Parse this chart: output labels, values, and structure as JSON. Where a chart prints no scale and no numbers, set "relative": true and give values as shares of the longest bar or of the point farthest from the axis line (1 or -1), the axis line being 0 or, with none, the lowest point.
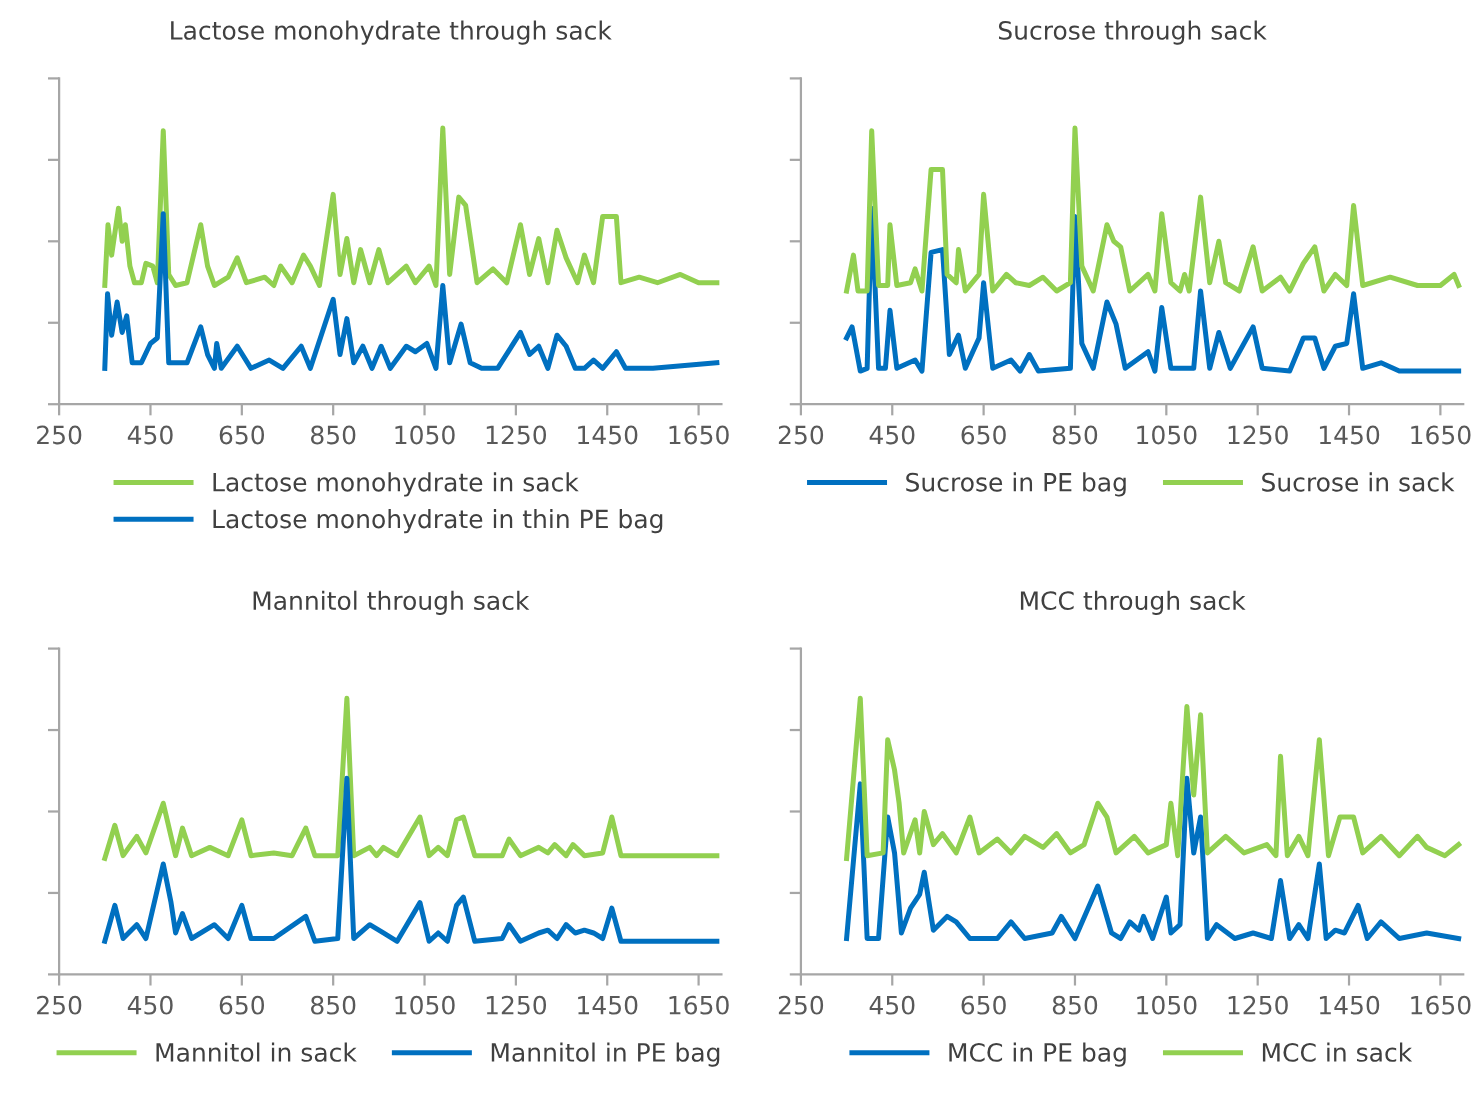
{
  "chart_data": [
    {
      "type": "line",
      "title": "Lactose monohydrate through sack",
      "relative": true,
      "xlim": [
        250,
        1700
      ],
      "xticks": [
        250,
        450,
        650,
        850,
        1050,
        1250,
        1450,
        1650
      ],
      "grid": false,
      "legend": "bottom",
      "marker": "none",
      "line_style": "solid",
      "tick_labels": "x",
      "series": [
        {
          "name": "Lactose monohydrate in sack",
          "color": "#92d050",
          "x": [
            350,
            357,
            365,
            380,
            388,
            395,
            405,
            415,
            430,
            440,
            455,
            465,
            478,
            490,
            505,
            530,
            560,
            575,
            590,
            620,
            640,
            660,
            700,
            720,
            735,
            760,
            785,
            800,
            820,
            850,
            865,
            880,
            895,
            910,
            930,
            950,
            970,
            1010,
            1030,
            1060,
            1075,
            1090,
            1105,
            1125,
            1140,
            1165,
            1200,
            1230,
            1260,
            1280,
            1300,
            1320,
            1340,
            1360,
            1385,
            1400,
            1420,
            1440,
            1470,
            1480,
            1520,
            1560,
            1610,
            1650,
            1690
          ],
          "values": [
            0.43,
            0.65,
            0.54,
            0.71,
            0.59,
            0.65,
            0.5,
            0.44,
            0.44,
            0.51,
            0.5,
            0.44,
            0.99,
            0.47,
            0.43,
            0.44,
            0.65,
            0.5,
            0.43,
            0.46,
            0.53,
            0.44,
            0.46,
            0.43,
            0.5,
            0.44,
            0.54,
            0.5,
            0.43,
            0.76,
            0.47,
            0.6,
            0.44,
            0.56,
            0.44,
            0.56,
            0.44,
            0.5,
            0.44,
            0.5,
            0.43,
            1,
            0.47,
            0.75,
            0.72,
            0.44,
            0.49,
            0.44,
            0.65,
            0.47,
            0.6,
            0.44,
            0.63,
            0.53,
            0.44,
            0.54,
            0.44,
            0.68,
            0.68,
            0.44,
            0.46,
            0.44,
            0.47,
            0.44,
            0.44
          ]
        },
        {
          "name": "Lactose monohydrate in thin PE bag",
          "color": "#0070c0",
          "x": [
            350,
            356,
            365,
            377,
            388,
            398,
            410,
            430,
            450,
            465,
            478,
            490,
            530,
            560,
            575,
            590,
            595,
            605,
            640,
            670,
            710,
            740,
            780,
            800,
            850,
            865,
            880,
            895,
            915,
            935,
            955,
            975,
            1010,
            1030,
            1055,
            1075,
            1090,
            1105,
            1130,
            1150,
            1175,
            1210,
            1260,
            1280,
            1300,
            1320,
            1340,
            1360,
            1380,
            1400,
            1420,
            1440,
            1470,
            1490,
            1550,
            1690
          ],
          "values": [
            0.13,
            0.4,
            0.25,
            0.37,
            0.26,
            0.32,
            0.15,
            0.15,
            0.22,
            0.24,
            0.69,
            0.15,
            0.15,
            0.28,
            0.18,
            0.13,
            0.22,
            0.13,
            0.21,
            0.13,
            0.16,
            0.13,
            0.21,
            0.13,
            0.38,
            0.18,
            0.31,
            0.15,
            0.21,
            0.13,
            0.21,
            0.13,
            0.21,
            0.19,
            0.22,
            0.13,
            0.43,
            0.15,
            0.29,
            0.15,
            0.13,
            0.13,
            0.26,
            0.18,
            0.21,
            0.13,
            0.25,
            0.21,
            0.13,
            0.13,
            0.16,
            0.13,
            0.19,
            0.13,
            0.13,
            0.15
          ]
        }
      ]
    },
    {
      "type": "line",
      "title": "Sucrose through sack",
      "relative": true,
      "xlim": [
        250,
        1700
      ],
      "xticks": [
        250,
        450,
        650,
        850,
        1050,
        1250,
        1450,
        1650
      ],
      "grid": false,
      "legend": "bottom",
      "marker": "none",
      "line_style": "solid",
      "tick_labels": "x",
      "series": [
        {
          "name": "Sucrose in PE bag",
          "color": "#0070c0",
          "x": [
            350,
            362,
            380,
            395,
            405,
            420,
            435,
            445,
            460,
            500,
            515,
            535,
            560,
            575,
            595,
            610,
            640,
            650,
            670,
            710,
            730,
            750,
            770,
            840,
            850,
            865,
            890,
            920,
            940,
            960,
            1010,
            1025,
            1040,
            1060,
            1110,
            1125,
            1145,
            1165,
            1190,
            1240,
            1260,
            1320,
            1350,
            1375,
            1395,
            1420,
            1445,
            1460,
            1480,
            1520,
            1560,
            1690
          ],
          "values": [
            0.24,
            0.28,
            0.12,
            0.13,
            0.71,
            0.13,
            0.13,
            0.34,
            0.13,
            0.16,
            0.12,
            0.55,
            0.56,
            0.18,
            0.25,
            0.13,
            0.24,
            0.44,
            0.13,
            0.16,
            0.12,
            0.18,
            0.12,
            0.13,
            0.68,
            0.22,
            0.13,
            0.37,
            0.29,
            0.13,
            0.19,
            0.12,
            0.35,
            0.13,
            0.13,
            0.41,
            0.13,
            0.26,
            0.13,
            0.28,
            0.13,
            0.12,
            0.24,
            0.24,
            0.13,
            0.21,
            0.22,
            0.4,
            0.13,
            0.15,
            0.12,
            0.12
          ]
        },
        {
          "name": "Sucrose in sack",
          "color": "#92d050",
          "x": [
            350,
            365,
            375,
            395,
            405,
            420,
            440,
            445,
            460,
            490,
            500,
            515,
            535,
            560,
            570,
            590,
            595,
            610,
            640,
            650,
            670,
            700,
            720,
            750,
            780,
            810,
            840,
            850,
            865,
            890,
            920,
            935,
            950,
            970,
            1010,
            1025,
            1040,
            1060,
            1080,
            1090,
            1100,
            1125,
            1145,
            1165,
            1180,
            1210,
            1240,
            1260,
            1300,
            1320,
            1350,
            1375,
            1395,
            1420,
            1445,
            1460,
            1480,
            1540,
            1600,
            1650,
            1680,
            1690
          ],
          "values": [
            0.41,
            0.54,
            0.41,
            0.41,
            0.99,
            0.43,
            0.43,
            0.65,
            0.43,
            0.44,
            0.49,
            0.41,
            0.85,
            0.85,
            0.47,
            0.44,
            0.56,
            0.41,
            0.47,
            0.76,
            0.41,
            0.47,
            0.44,
            0.43,
            0.46,
            0.41,
            0.44,
            1,
            0.5,
            0.41,
            0.65,
            0.59,
            0.57,
            0.41,
            0.47,
            0.41,
            0.69,
            0.44,
            0.41,
            0.47,
            0.41,
            0.75,
            0.44,
            0.59,
            0.44,
            0.41,
            0.57,
            0.41,
            0.46,
            0.41,
            0.51,
            0.57,
            0.41,
            0.47,
            0.43,
            0.72,
            0.43,
            0.46,
            0.43,
            0.43,
            0.47,
            0.43
          ]
        }
      ]
    },
    {
      "type": "line",
      "title": "Mannitol through sack",
      "relative": true,
      "xlim": [
        250,
        1700
      ],
      "xticks": [
        250,
        450,
        650,
        850,
        1050,
        1250,
        1450,
        1650
      ],
      "grid": false,
      "legend": "bottom",
      "marker": "none",
      "line_style": "solid",
      "tick_labels": "x",
      "series": [
        {
          "name": "Mannitol in sack",
          "color": "#92d050",
          "x": [
            350,
            372,
            390,
            420,
            440,
            478,
            495,
            505,
            520,
            540,
            580,
            620,
            650,
            670,
            720,
            760,
            790,
            810,
            860,
            880,
            895,
            930,
            945,
            960,
            990,
            1040,
            1060,
            1080,
            1100,
            1120,
            1135,
            1160,
            1220,
            1235,
            1260,
            1300,
            1320,
            1335,
            1360,
            1375,
            1400,
            1440,
            1460,
            1480,
            1690
          ],
          "values": [
            0.42,
            0.54,
            0.43,
            0.5,
            0.44,
            0.62,
            0.5,
            0.43,
            0.53,
            0.43,
            0.46,
            0.43,
            0.56,
            0.43,
            0.44,
            0.43,
            0.53,
            0.43,
            0.43,
            1,
            0.43,
            0.46,
            0.43,
            0.46,
            0.43,
            0.57,
            0.43,
            0.46,
            0.43,
            0.56,
            0.57,
            0.43,
            0.43,
            0.49,
            0.43,
            0.46,
            0.44,
            0.47,
            0.43,
            0.47,
            0.43,
            0.44,
            0.57,
            0.43,
            0.43
          ]
        },
        {
          "name": "Mannitol in PE bag",
          "color": "#0070c0",
          "x": [
            350,
            372,
            390,
            420,
            440,
            478,
            495,
            505,
            520,
            540,
            590,
            620,
            650,
            670,
            720,
            790,
            810,
            860,
            880,
            895,
            930,
            960,
            990,
            1040,
            1060,
            1080,
            1100,
            1120,
            1135,
            1160,
            1220,
            1235,
            1260,
            1300,
            1320,
            1340,
            1360,
            1380,
            1400,
            1420,
            1440,
            1460,
            1480,
            1550,
            1690
          ],
          "values": [
            0.12,
            0.25,
            0.13,
            0.18,
            0.13,
            0.4,
            0.26,
            0.15,
            0.22,
            0.13,
            0.18,
            0.13,
            0.25,
            0.13,
            0.13,
            0.21,
            0.12,
            0.13,
            0.71,
            0.13,
            0.18,
            0.15,
            0.12,
            0.26,
            0.12,
            0.15,
            0.12,
            0.25,
            0.28,
            0.12,
            0.13,
            0.18,
            0.12,
            0.15,
            0.16,
            0.13,
            0.18,
            0.15,
            0.16,
            0.15,
            0.13,
            0.24,
            0.12,
            0.12,
            0.12
          ]
        }
      ]
    },
    {
      "type": "line",
      "title": "MCC through sack",
      "relative": true,
      "xlim": [
        250,
        1700
      ],
      "xticks": [
        250,
        450,
        650,
        850,
        1050,
        1250,
        1450,
        1650
      ],
      "grid": false,
      "legend": "bottom",
      "marker": "none",
      "line_style": "solid",
      "tick_labels": "x",
      "series": [
        {
          "name": "MCC in PE bag",
          "color": "#0070c0",
          "x": [
            350,
            380,
            395,
            420,
            440,
            455,
            470,
            490,
            510,
            520,
            540,
            570,
            590,
            620,
            680,
            710,
            740,
            800,
            820,
            850,
            900,
            930,
            950,
            970,
            990,
            1000,
            1020,
            1050,
            1060,
            1080,
            1095,
            1110,
            1125,
            1140,
            1160,
            1200,
            1240,
            1280,
            1300,
            1320,
            1340,
            1360,
            1385,
            1400,
            1420,
            1440,
            1470,
            1490,
            1520,
            1560,
            1620,
            1690
          ],
          "values": [
            0.13,
            0.69,
            0.13,
            0.13,
            0.57,
            0.44,
            0.15,
            0.24,
            0.29,
            0.37,
            0.16,
            0.21,
            0.19,
            0.13,
            0.13,
            0.19,
            0.13,
            0.15,
            0.21,
            0.13,
            0.32,
            0.15,
            0.13,
            0.19,
            0.16,
            0.21,
            0.13,
            0.28,
            0.15,
            0.18,
            0.71,
            0.44,
            0.57,
            0.13,
            0.18,
            0.13,
            0.15,
            0.13,
            0.34,
            0.13,
            0.18,
            0.13,
            0.4,
            0.13,
            0.16,
            0.15,
            0.25,
            0.13,
            0.19,
            0.13,
            0.15,
            0.13
          ]
        },
        {
          "name": "MCC in sack",
          "color": "#92d050",
          "x": [
            350,
            380,
            395,
            430,
            440,
            455,
            465,
            475,
            500,
            510,
            520,
            540,
            560,
            590,
            620,
            640,
            680,
            710,
            740,
            780,
            810,
            840,
            870,
            900,
            920,
            940,
            980,
            1010,
            1050,
            1060,
            1075,
            1095,
            1110,
            1125,
            1140,
            1180,
            1220,
            1270,
            1290,
            1300,
            1315,
            1340,
            1360,
            1385,
            1405,
            1430,
            1460,
            1480,
            1520,
            1560,
            1600,
            1620,
            1660,
            1690
          ],
          "values": [
            0.42,
            1,
            0.43,
            0.44,
            0.85,
            0.74,
            0.62,
            0.44,
            0.56,
            0.44,
            0.59,
            0.47,
            0.51,
            0.44,
            0.57,
            0.44,
            0.49,
            0.44,
            0.5,
            0.46,
            0.51,
            0.44,
            0.47,
            0.62,
            0.57,
            0.44,
            0.5,
            0.44,
            0.47,
            0.62,
            0.43,
            0.97,
            0.65,
            0.94,
            0.44,
            0.5,
            0.44,
            0.47,
            0.43,
            0.79,
            0.43,
            0.5,
            0.43,
            0.85,
            0.43,
            0.57,
            0.57,
            0.44,
            0.5,
            0.43,
            0.5,
            0.46,
            0.43,
            0.47
          ]
        }
      ]
    }
  ]
}
